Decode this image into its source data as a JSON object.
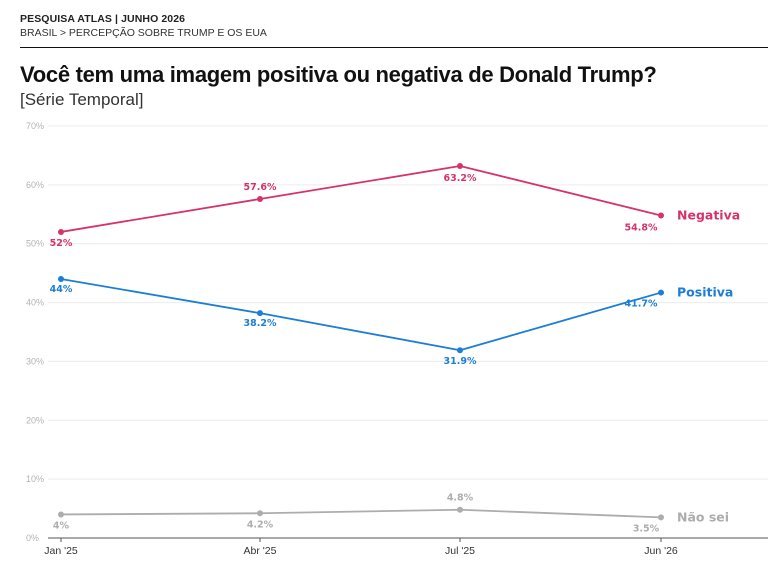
{
  "header": {
    "kicker": "PESQUISA ATLAS | JUNHO 2026",
    "breadcrumb": "BRASIL > PERCEPÇÃO SOBRE TRUMP E OS EUA"
  },
  "chart_data": {
    "type": "line",
    "title": "Você tem uma imagem positiva ou negativa de Donald Trump?",
    "subtitle": "[Série Temporal]",
    "categories": [
      "Jan '25",
      "Abr '25",
      "Jul '25",
      "Jun '26"
    ],
    "yticks": [
      "0%",
      "10%",
      "20%",
      "30%",
      "40%",
      "50%",
      "60%",
      "70%"
    ],
    "ylim": [
      0,
      70
    ],
    "grid": true,
    "series": [
      {
        "name": "Negativa",
        "color": "#d6336c",
        "values": [
          52,
          57.6,
          63.2,
          54.8
        ],
        "labels": [
          "52%",
          "57.6%",
          "63.2%",
          "54.8%"
        ]
      },
      {
        "name": "Positiva",
        "color": "#1c7ed6",
        "values": [
          44,
          38.2,
          31.9,
          41.7
        ],
        "labels": [
          "44%",
          "38.2%",
          "31.9%",
          "41.7%"
        ]
      },
      {
        "name": "Não sei",
        "color": "#adadad",
        "values": [
          4,
          4.2,
          4.8,
          3.5
        ],
        "labels": [
          "4%",
          "4.2%",
          "4.8%",
          "3.5%"
        ]
      }
    ]
  }
}
